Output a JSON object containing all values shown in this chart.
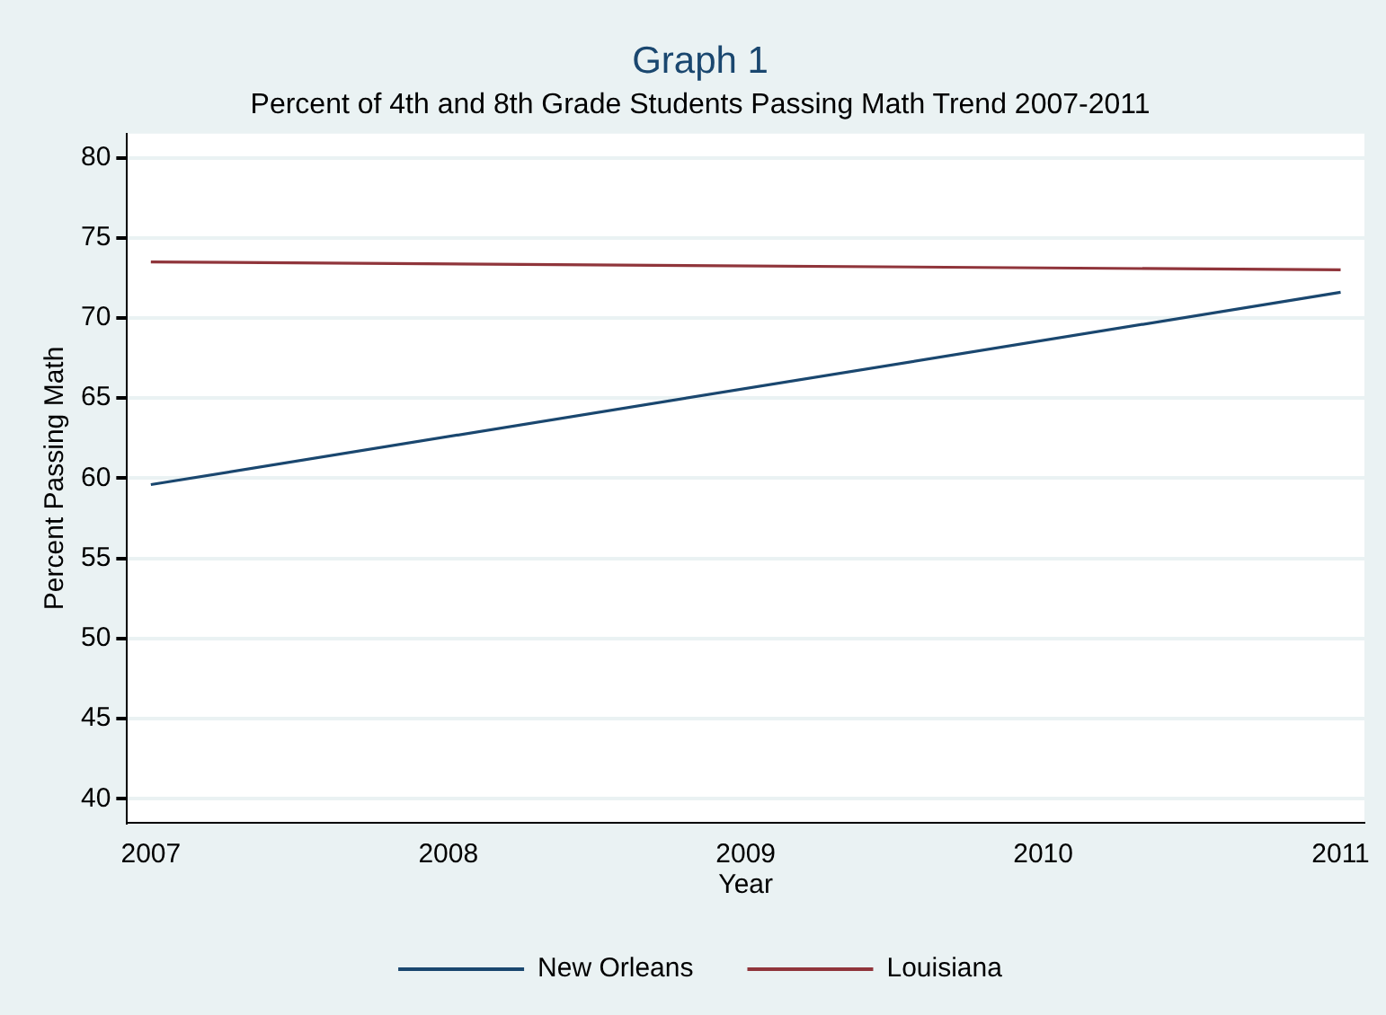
{
  "chart_data": {
    "type": "line",
    "title": "Graph 1",
    "subtitle": "Percent of 4th and 8th Grade Students Passing Math Trend 2007-2011",
    "xlabel": "Year",
    "ylabel": "Percent Passing Math",
    "x": [
      2007,
      2011
    ],
    "xlim": [
      2006.92,
      2011.08
    ],
    "xticks": [
      2007,
      2008,
      2009,
      2010,
      2011
    ],
    "ylim": [
      38.5,
      81.5
    ],
    "yticks": [
      40,
      45,
      50,
      55,
      60,
      65,
      70,
      75,
      80
    ],
    "series": [
      {
        "name": "New Orleans",
        "color": "#1a476f",
        "values": [
          59.6,
          71.6
        ]
      },
      {
        "name": "Louisiana",
        "color": "#90353b",
        "values": [
          73.5,
          73.0
        ]
      }
    ],
    "grid": "y",
    "legend": "bottom",
    "marker": "none",
    "line_style": "solid"
  }
}
